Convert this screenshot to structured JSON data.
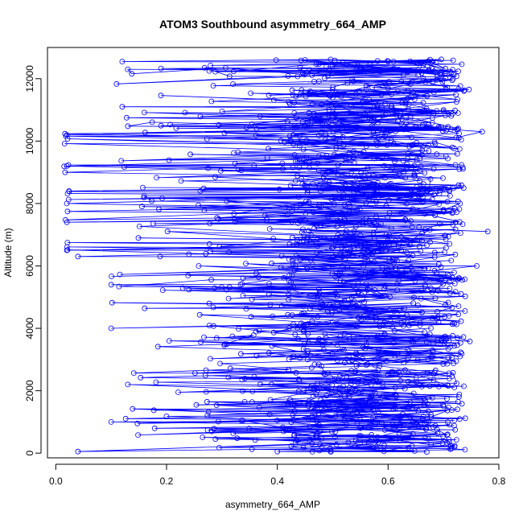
{
  "chart_data": {
    "type": "line",
    "title": "ATOM3 Southbound asymmetry_664_AMP",
    "xlabel": "asymmetry_664_AMP",
    "ylabel": "Altitude (m)",
    "xlim": [
      -0.015,
      0.8
    ],
    "ylim": [
      -150,
      13000
    ],
    "x_ticks": [
      "0.0",
      "0.2",
      "0.4",
      "0.6",
      "0.8"
    ],
    "y_ticks": [
      "0",
      "2000",
      "4000",
      "6000",
      "8000",
      "10000",
      "12000"
    ],
    "x_tick_values": [
      0.0,
      0.2,
      0.4,
      0.6,
      0.8
    ],
    "y_tick_values": [
      0,
      2000,
      4000,
      6000,
      8000,
      10000,
      12000
    ],
    "grid": false,
    "legend": "none",
    "marker": "open-circle",
    "series": [
      {
        "color": "#0000ff",
        "points_described": "dense profile; values mostly 0.4-0.75, outliers near 0.02 between 6300-10300 m",
        "sample_points": [
          {
            "x": 0.04,
            "y": 50
          },
          {
            "x": 0.4,
            "y": 50
          },
          {
            "x": 0.72,
            "y": 200
          },
          {
            "x": 0.1,
            "y": 1000
          },
          {
            "x": 0.55,
            "y": 800
          },
          {
            "x": 0.7,
            "y": 1500
          },
          {
            "x": 0.13,
            "y": 2200
          },
          {
            "x": 0.6,
            "y": 2500
          },
          {
            "x": 0.73,
            "y": 3100
          },
          {
            "x": 0.1,
            "y": 4000
          },
          {
            "x": 0.5,
            "y": 4200
          },
          {
            "x": 0.71,
            "y": 3600
          },
          {
            "x": 0.1,
            "y": 5400
          },
          {
            "x": 0.55,
            "y": 5600
          },
          {
            "x": 0.76,
            "y": 6000
          },
          {
            "x": 0.04,
            "y": 6300
          },
          {
            "x": 0.02,
            "y": 6500
          },
          {
            "x": 0.62,
            "y": 6700
          },
          {
            "x": 0.78,
            "y": 7100
          },
          {
            "x": 0.02,
            "y": 7400
          },
          {
            "x": 0.7,
            "y": 7800
          },
          {
            "x": 0.02,
            "y": 8000
          },
          {
            "x": 0.52,
            "y": 8500
          },
          {
            "x": 0.73,
            "y": 8000
          },
          {
            "x": 0.02,
            "y": 9200
          },
          {
            "x": 0.55,
            "y": 9600
          },
          {
            "x": 0.77,
            "y": 10300
          },
          {
            "x": 0.02,
            "y": 10200
          },
          {
            "x": 0.45,
            "y": 10500
          },
          {
            "x": 0.7,
            "y": 11000
          },
          {
            "x": 0.12,
            "y": 11100
          },
          {
            "x": 0.5,
            "y": 11400
          },
          {
            "x": 0.68,
            "y": 11900
          },
          {
            "x": 0.13,
            "y": 12300
          },
          {
            "x": 0.52,
            "y": 12200
          },
          {
            "x": 0.68,
            "y": 12550
          },
          {
            "x": 0.12,
            "y": 12550
          },
          {
            "x": 0.45,
            "y": 12600
          }
        ]
      }
    ]
  }
}
